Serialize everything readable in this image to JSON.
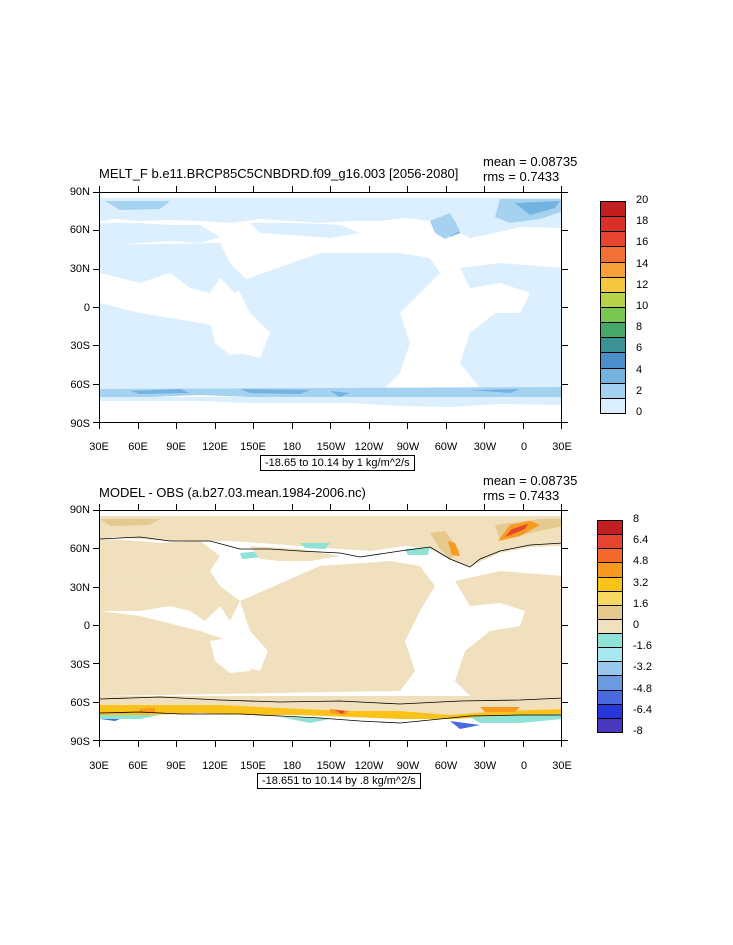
{
  "panels": [
    {
      "title": "MELT_F b.e11.BRCP85C5CNBDRD.f09_g16.003 [2056-2080]",
      "mean": "mean = 0.08735",
      "rms": "rms = 0.7433",
      "range": "-18.65 to 10.14 by 1 kg/m^2/s",
      "colorbar": {
        "labels": [
          "20",
          "18",
          "16",
          "14",
          "12",
          "10",
          "8",
          "6",
          "4",
          "2",
          "0"
        ],
        "colors": [
          "#c22020",
          "#d9302a",
          "#e5452e",
          "#f07036",
          "#f7a13c",
          "#f5c640",
          "#b8d24a",
          "#7ac653",
          "#48a86a",
          "#3a9294",
          "#4a8fcc",
          "#74b3e0",
          "#a4d2f0",
          "#dcefff"
        ]
      }
    },
    {
      "title": "MODEL - OBS (a.b27.03.mean.1984-2006.nc)",
      "mean": "mean = 0.08735",
      "rms": "rms = 0.7433",
      "range": "-18.651 to 10.14 by .8 kg/m^2/s",
      "colorbar": {
        "labels": [
          "8",
          "6.4",
          "4.8",
          "3.2",
          "1.6",
          "0",
          "-1.6",
          "-3.2",
          "-4.8",
          "-6.4",
          "-8"
        ],
        "colors": [
          "#c22020",
          "#e5452e",
          "#f56a2a",
          "#f99a20",
          "#fbc21a",
          "#f8d860",
          "#e6c98e",
          "#f0e0be",
          "#8fe2d6",
          "#a8e8f0",
          "#98c8ee",
          "#6a9ae0",
          "#4a6ae0",
          "#2838d8",
          "#4838c0"
        ]
      }
    }
  ],
  "lat_labels": [
    "90N",
    "60N",
    "30N",
    "0",
    "30S",
    "60S",
    "90S"
  ],
  "lon_labels": [
    "30E",
    "60E",
    "90E",
    "120E",
    "150E",
    "180",
    "150W",
    "120W",
    "90W",
    "60W",
    "30W",
    "0",
    "30E"
  ],
  "colors": {
    "ice_light": "#dcefff",
    "ice_mid": "#a4d2f0",
    "ice_dark": "#74b3e0",
    "land_diff": "#f0e0be",
    "diff_orange": "#f99a20",
    "diff_red": "#e5452e"
  }
}
